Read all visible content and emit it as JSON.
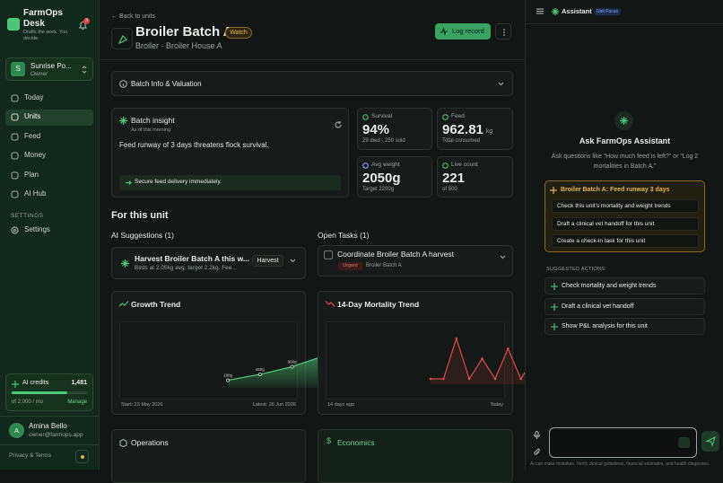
{
  "sidebar": {
    "brand": "FarmOps Desk",
    "tagline": "Drafts the work. You decide.",
    "notifications": "3",
    "farm": {
      "initial": "S",
      "name": "Sunrise Po...",
      "role": "Owner"
    },
    "nav": [
      "Today",
      "Units",
      "Feed",
      "Money",
      "Plan",
      "AI Hub"
    ],
    "settings_heading": "SETTINGS",
    "settings": "Settings",
    "credits": {
      "label": "AI credits",
      "used": {
        "value": 1481,
        "label": "1,481"
      },
      "total": {
        "value": 2000,
        "label": "of 2,000 / mo"
      },
      "action": "Manage"
    },
    "user": {
      "initial": "A",
      "name": "Amina Bello",
      "email": "owner@farmops.app"
    },
    "footer": "Privacy & Terms"
  },
  "header": {
    "back": "← Back to units",
    "title": "Broiler Batch A",
    "status": "Watch",
    "subtitle": "Broiler · Broiler House A",
    "action": "Log record"
  },
  "batch_info": "Batch Info & Valuation",
  "insight": {
    "title": "Batch insight",
    "time": "As of this morning",
    "text": "Feed runway of 3 days threatens flock survival.",
    "action": "Secure feed delivery immediately."
  },
  "stats": [
    {
      "label": "Survival",
      "value": "94%",
      "note": "29 died · 250 sold"
    },
    {
      "label": "Feed",
      "value": "962.81",
      "unit": "kg",
      "note": "Total consumed"
    },
    {
      "label": "Avg weight",
      "value": "2050g",
      "note": "Target 2200g"
    },
    {
      "label": "Live count",
      "value": "221",
      "note": "of 500"
    }
  ],
  "section_title": "For this unit",
  "suggestions": {
    "title": "AI Suggestions (1)",
    "items": [
      {
        "title": "Harvest Broiler Batch A this w...",
        "text": "Birds at 2.05kg avg, target 2.2kg. Fee...",
        "tag": "Harvest"
      }
    ]
  },
  "tasks": {
    "title": "Open Tasks (1)",
    "items": [
      {
        "title": "Coordinate Broiler Batch A harvest",
        "priority": "Urgent",
        "unit": "Broiler Batch A"
      }
    ]
  },
  "growth_trend": {
    "type": "area",
    "title": "Growth Trend",
    "values": [
      180,
      450,
      800,
      1300,
      1700,
      2050
    ],
    "value_labels": [
      "180g",
      "450g",
      "800g",
      "1300g",
      "1700g",
      "2050g"
    ],
    "color": "#4cc77a",
    "start": "Start: 23 May 2026",
    "end": "Latest: 26 Jun 2026"
  },
  "mortality_trend": {
    "type": "line",
    "title": "14-Day Mortality Trend",
    "values": [
      0,
      0,
      4,
      0,
      2,
      0,
      3,
      0,
      2,
      0,
      2,
      1,
      0,
      0
    ],
    "color": "#e04a4a",
    "start": "14 days ago",
    "end": "Today"
  },
  "lower_sections": [
    "Operations",
    "Economics"
  ],
  "assistant": {
    "title": "Assistant",
    "mode": "Unit Focus",
    "heading": "Ask FarmOps Assistant",
    "hint": "Ask questions like “How much feed is left?” or “Log 2 mortalities in Batch A.”",
    "alert": {
      "title": "Broiler Batch A: Feed runway 3 days",
      "options": [
        "Check this unit's mortality and weight trends",
        "Draft a clinical vet handoff for this unit",
        "Create a check-in task for this unit"
      ]
    },
    "suggested_heading": "SUGGESTED ACTIONS:",
    "suggested": [
      "Check mortality and weight trends",
      "Draft a clinical vet handoff",
      "Show P&L analysis for this unit"
    ],
    "disclaimer": "AI can make mistakes. Verify clinical guidelines, financial estimates, and health diagnoses."
  }
}
